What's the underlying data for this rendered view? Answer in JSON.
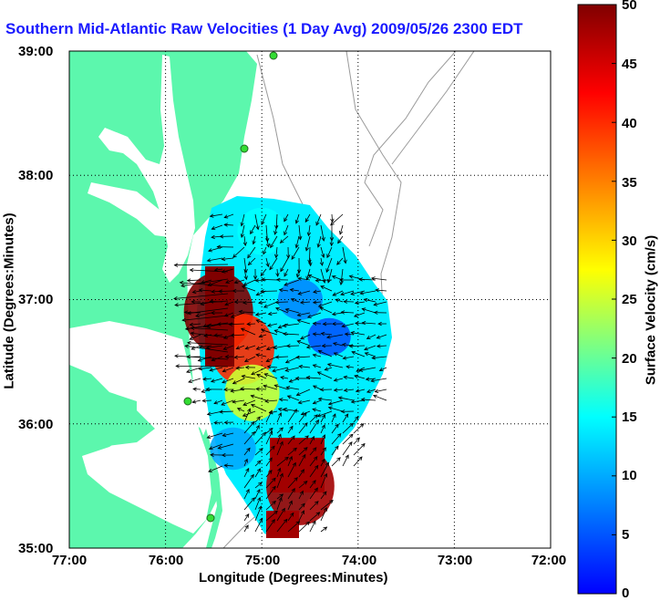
{
  "title": "Southern Mid-Atlantic Raw Velocities (1 Day Avg) 2009/05/26 2300 EDT",
  "x_axis_label": "Longitude (Degrees:Minutes)",
  "y_axis_label": "Latitude (Degrees:Minutes)",
  "colorbar_label": "Surface Velocity (cm/s)",
  "x_ticks": [
    "77:00",
    "76:00",
    "75:00",
    "74:00",
    "73:00",
    "72:00"
  ],
  "y_ticks": [
    "39:00",
    "38:00",
    "37:00",
    "36:00",
    "35:00"
  ],
  "colorbar_ticks": [
    "50",
    "45",
    "40",
    "35",
    "30",
    "25",
    "20",
    "15",
    "10",
    "5",
    "0"
  ],
  "colors": {
    "title": "#1a1aff",
    "land": "#5cf7ad",
    "vector": "#000000",
    "colormap": [
      "#0000ff",
      "#00ffff",
      "#ffff00",
      "#ff0000",
      "#800000"
    ]
  },
  "chart_data": {
    "type": "heatmap",
    "title": "Southern Mid-Atlantic Raw Velocities (1 Day Avg) 2009/05/26 2300 EDT",
    "xlabel": "Longitude (Degrees:Minutes)",
    "ylabel": "Latitude (Degrees:Minutes)",
    "colorbar_label": "Surface Velocity (cm/s)",
    "xlim": [
      -77,
      -72
    ],
    "ylim": [
      35,
      39
    ],
    "clim": [
      0,
      50
    ],
    "grid": true,
    "regions": [
      {
        "lon": -75.45,
        "lat": 36.9,
        "velocity": 50
      },
      {
        "lon": -75.2,
        "lat": 36.6,
        "velocity": 40
      },
      {
        "lon": -75.0,
        "lat": 37.55,
        "velocity": 15
      },
      {
        "lon": -74.6,
        "lat": 37.0,
        "velocity": 8
      },
      {
        "lon": -74.3,
        "lat": 36.7,
        "velocity": 5
      },
      {
        "lon": -74.6,
        "lat": 35.5,
        "velocity": 48
      },
      {
        "lon": -75.3,
        "lat": 35.8,
        "velocity": 10
      },
      {
        "lon": -75.1,
        "lat": 36.25,
        "velocity": 25
      }
    ]
  }
}
